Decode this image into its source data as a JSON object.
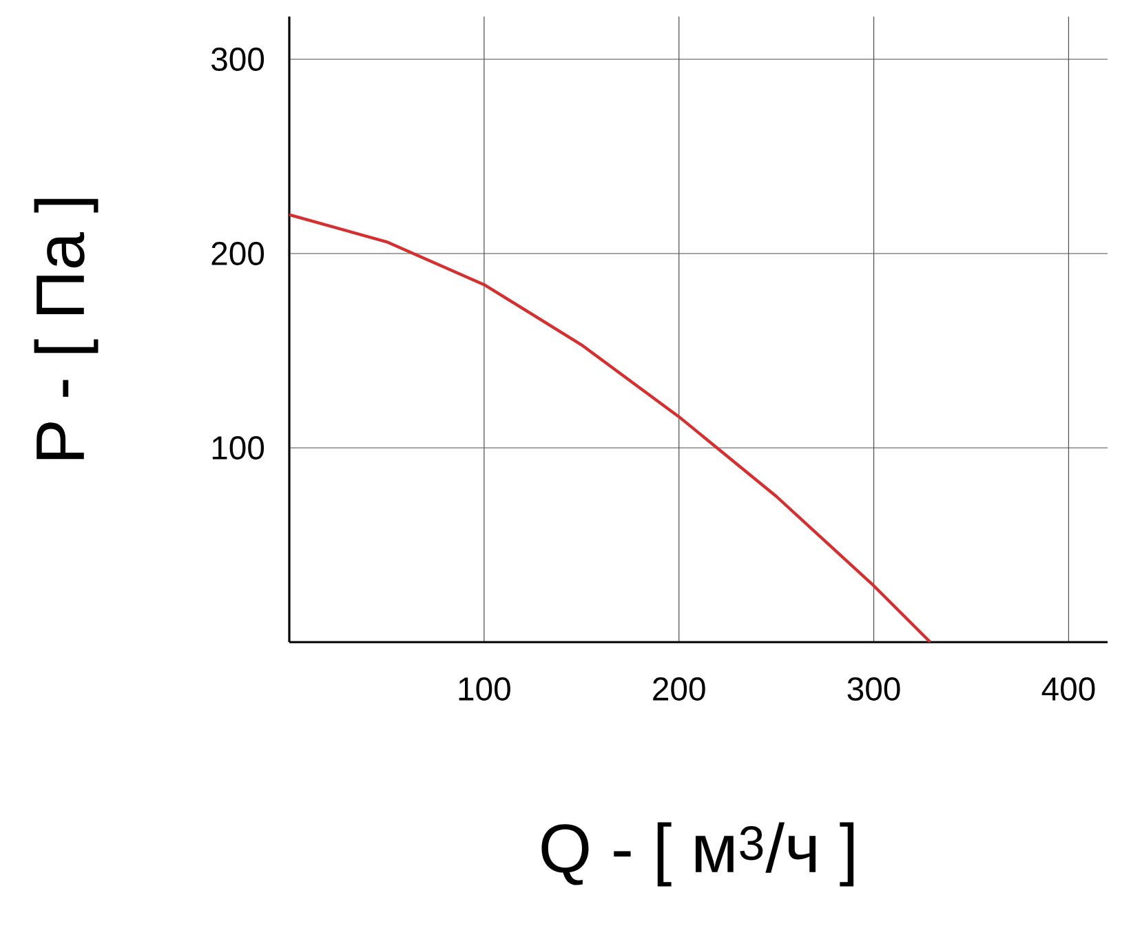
{
  "chart_data": {
    "type": "line",
    "xlabel": "Q - [ м$^{3}$/ч ]",
    "ylabel": "P - [ Па ]",
    "x": [
      0,
      50,
      100,
      150,
      200,
      250,
      300,
      329
    ],
    "series": [
      {
        "color": "#d62f2f",
        "values": [
          220,
          206,
          184,
          153,
          116,
          75,
          29,
          0
        ]
      }
    ],
    "xlim": [
      0,
      420
    ],
    "ylim": [
      0,
      322
    ],
    "xticks": [
      100,
      200,
      300,
      400
    ],
    "yticks": [
      100,
      200,
      300
    ],
    "grid": true,
    "marker": "none",
    "line_style": "solid"
  }
}
